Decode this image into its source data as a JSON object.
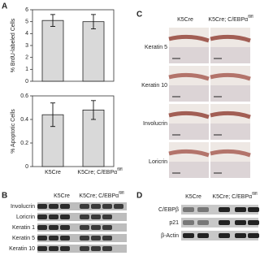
{
  "panels": [
    "A",
    "B",
    "C",
    "D"
  ],
  "chart_data": [
    {
      "type": "bar",
      "y_label": "% BrdU-labeled Cells",
      "categories": [
        "K5Cre",
        "K5Cre; C/EBPα"
      ],
      "category_superscripts": [
        null,
        "fl/fl"
      ],
      "values": [
        5.1,
        5.0
      ],
      "errors": [
        0.5,
        0.6
      ],
      "color": "#d9d9d9",
      "ylim": [
        0,
        6
      ],
      "yticks": [
        0,
        1,
        2,
        3,
        4,
        5,
        6
      ]
    },
    {
      "type": "bar",
      "y_label": "% Apoptotic Cells",
      "categories": [
        "K5Cre",
        "K5Cre; C/EBPα"
      ],
      "category_superscripts": [
        null,
        "fl/fl"
      ],
      "values": [
        0.44,
        0.48
      ],
      "errors": [
        0.1,
        0.08
      ],
      "color": "#d9d9d9",
      "ylim": [
        0,
        0.6
      ],
      "yticks": [
        0,
        0.2,
        0.4,
        0.6
      ]
    }
  ],
  "panel_b": {
    "columns": [
      "K5Cre",
      "K5Cre; C/EBPα"
    ],
    "column_superscript": "fl/fl",
    "rows": [
      "Involucrin",
      "Loricrin",
      "Keratin 1",
      "Keratin 5",
      "Keratin 10"
    ]
  },
  "panel_c": {
    "columns": [
      "K5Cre",
      "K5Cre; C/EBPα"
    ],
    "column_superscript": "fl/fl",
    "rows": [
      "Keratin 5",
      "Keratin 10",
      "Involucrin",
      "Loricrin"
    ]
  },
  "panel_d": {
    "columns": [
      "K5Cre",
      "K5Cre; C/EBPα"
    ],
    "column_superscript": "fl/fl",
    "rows": [
      "C/EBPβ",
      "p21",
      "β-Actin"
    ]
  }
}
